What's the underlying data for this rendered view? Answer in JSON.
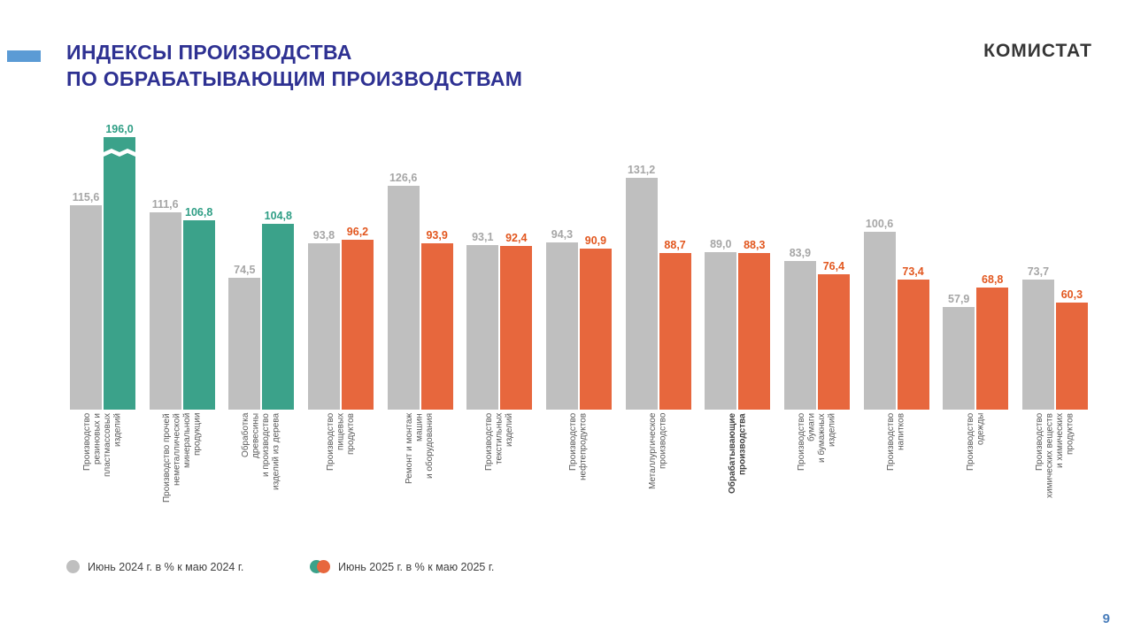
{
  "header": {
    "title_line1": "ИНДЕКСЫ ПРОИЗВОДСТВА",
    "title_line2": "ПО ОБРАБАТЫВАЮЩИМ ПРОИЗВОДСТВАМ",
    "logo": "КОМИСТАТ"
  },
  "page_number": "9",
  "colors": {
    "accent_dash": "#5b9bd5",
    "title": "#2e3192",
    "logo": "#363636",
    "bar_2024": "#bfbfbf",
    "bar_2025_teal": "#3ba28a",
    "bar_2025_orange": "#e7673d",
    "value_2024": "#a6a6a6",
    "value_2025_teal": "#2f9e85",
    "value_2025_orange": "#e2571f",
    "category_text": "#595959",
    "page_number": "#4a7ebb"
  },
  "legend": [
    {
      "label": "Июнь 2024 г. в % к маю 2024 г.",
      "marker": "gray-circle"
    },
    {
      "label": "Июнь 2025 г. в % к маю 2025 г.",
      "marker": "teal-orange-circles"
    }
  ],
  "chart_data": {
    "type": "bar",
    "title": "ИНДЕКСЫ ПРОИЗВОДСТВА ПО ОБРАБАТЫВАЮЩИМ ПРОИЗВОДСТВАМ",
    "series": [
      "Июнь 2024 г. в % к маю 2024 г.",
      "Июнь 2025 г. в % к маю 2025 г."
    ],
    "ylim": [
      0,
      170
    ],
    "grid": false,
    "legend_position": "bottom",
    "broken_bar_display_cap": 154,
    "groups": [
      {
        "category": "Производство резиновых и пластмассовых изделий",
        "category_lines": "Производство\nрезиновых и\nпластмассовых\nизделий",
        "june_2024": 115.6,
        "june_2025": 196.0,
        "label_2024": "115,6",
        "label_2025": "196,0",
        "accent": "teal",
        "broken": true,
        "bold": false
      },
      {
        "category": "Производство прочей неметаллической минеральной продукции",
        "category_lines": "Производство прочей\nнеметаллической\nминеральной\nпродукции",
        "june_2024": 111.6,
        "june_2025": 106.8,
        "label_2024": "111,6",
        "label_2025": "106,8",
        "accent": "teal",
        "broken": false,
        "bold": false
      },
      {
        "category": "Обработка древесины и производство изделий из дерева",
        "category_lines": "Обработка\nдревесины\nи производство\nизделий из дерева",
        "june_2024": 74.5,
        "june_2025": 104.8,
        "label_2024": "74,5",
        "label_2025": "104,8",
        "accent": "teal",
        "broken": false,
        "bold": false
      },
      {
        "category": "Производство пищевых продуктов",
        "category_lines": "Производство\nпищевых\nпродуктов",
        "june_2024": 93.8,
        "june_2025": 96.2,
        "label_2024": "93,8",
        "label_2025": "96,2",
        "accent": "orange",
        "broken": false,
        "bold": false
      },
      {
        "category": "Ремонт и монтаж машин и оборудования",
        "category_lines": "Ремонт и монтаж\nмашин\nи оборудования",
        "june_2024": 126.6,
        "june_2025": 93.9,
        "label_2024": "126,6",
        "label_2025": "93,9",
        "accent": "orange",
        "broken": false,
        "bold": false
      },
      {
        "category": "Производство текстильных изделий",
        "category_lines": "Производство\nтекстильных\nизделий",
        "june_2024": 93.1,
        "june_2025": 92.4,
        "label_2024": "93,1",
        "label_2025": "92,4",
        "accent": "orange",
        "broken": false,
        "bold": false
      },
      {
        "category": "Производство нефтепродуктов",
        "category_lines": "Производство\nнефтепродуктов",
        "june_2024": 94.3,
        "june_2025": 90.9,
        "label_2024": "94,3",
        "label_2025": "90,9",
        "accent": "orange",
        "broken": false,
        "bold": false
      },
      {
        "category": "Металлургическое производство",
        "category_lines": "Металлургическое\nпроизводство",
        "june_2024": 131.2,
        "june_2025": 88.7,
        "label_2024": "131,2",
        "label_2025": "88,7",
        "accent": "orange",
        "broken": false,
        "bold": false
      },
      {
        "category": "Обрабатывающие производства",
        "category_lines": "Обрабатывающие\nпроизводства",
        "june_2024": 89.0,
        "june_2025": 88.3,
        "label_2024": "89,0",
        "label_2025": "88,3",
        "accent": "orange",
        "broken": false,
        "bold": true
      },
      {
        "category": "Производство бумаги и бумажных изделий",
        "category_lines": "Производство\nбумаги\nи бумажных\nизделий",
        "june_2024": 83.9,
        "june_2025": 76.4,
        "label_2024": "83,9",
        "label_2025": "76,4",
        "accent": "orange",
        "broken": false,
        "bold": false
      },
      {
        "category": "Производство напитков",
        "category_lines": "Производство\nнапитков",
        "june_2024": 100.6,
        "june_2025": 73.4,
        "label_2024": "100,6",
        "label_2025": "73,4",
        "accent": "orange",
        "broken": false,
        "bold": false
      },
      {
        "category": "Производство одежды",
        "category_lines": "Производство\nодежды",
        "june_2024": 57.9,
        "june_2025": 68.8,
        "label_2024": "57,9",
        "label_2025": "68,8",
        "accent": "orange",
        "broken": false,
        "bold": false
      },
      {
        "category": "Производство химических веществ и химических продуктов",
        "category_lines": "Производство\nхимических веществ\nи химических\nпродуктов",
        "june_2024": 73.7,
        "june_2025": 60.3,
        "label_2024": "73,7",
        "label_2025": "60,3",
        "accent": "orange",
        "broken": false,
        "bold": false
      }
    ]
  }
}
